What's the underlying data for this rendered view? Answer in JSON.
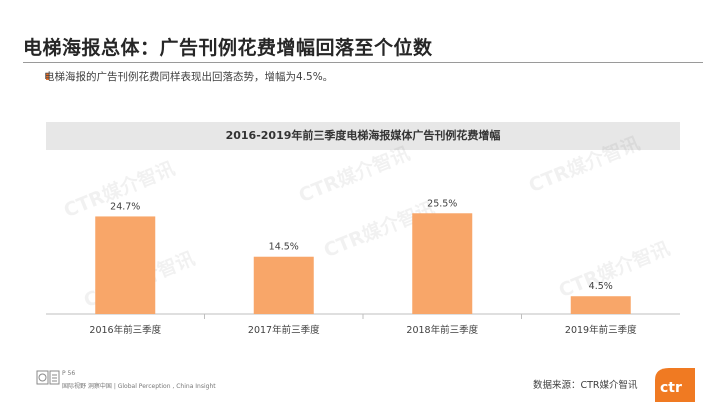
{
  "slide": {
    "title": "电梯海报总体：广告刊例花费增幅回落至个位数",
    "bullet": "电梯海报的广告刊例花费同样表现出回落态势，增幅为4.5%。",
    "watermark": "CTR媒介智讯",
    "page_number": "P 56",
    "footer_tagline": "国际视野  洞察中国 | Global Perception , China Insight",
    "source": "数据来源：CTR媒介智讯",
    "logo_text": "ctr"
  },
  "colors": {
    "bar": "#f8a669",
    "accent": "#e8702a",
    "header_bg": "#e7e7e7"
  },
  "icons": [
    "ctr-logo-icon",
    "certification-badge-icon"
  ],
  "chart_data": {
    "type": "bar",
    "title": "2016-2019年前三季度电梯海报媒体广告刊例花费增幅",
    "categories": [
      "2016年前三季度",
      "2017年前三季度",
      "2018年前三季度",
      "2019年前三季度"
    ],
    "values": [
      24.7,
      14.5,
      25.5,
      4.5
    ],
    "value_labels": [
      "24.7%",
      "14.5%",
      "25.5%",
      "4.5%"
    ],
    "xlabel": "",
    "ylabel": "",
    "ylim": [
      0,
      30
    ],
    "grid": false,
    "legend": "none"
  }
}
